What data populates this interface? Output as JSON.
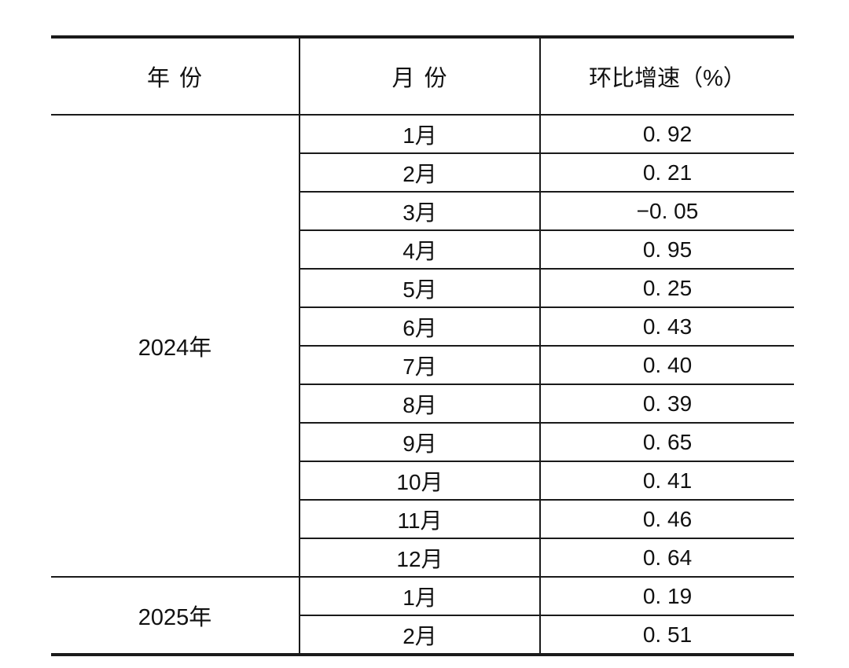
{
  "colors": {
    "ink": "#111111",
    "line": "#1a1a1a",
    "background": "#ffffff"
  },
  "table": {
    "columns": [
      {
        "label": "年份"
      },
      {
        "label": "月份"
      },
      {
        "label": "环比增速（%）"
      }
    ],
    "groups": [
      {
        "year": "2024年",
        "rows": [
          {
            "month": "1月",
            "value_display": "0. 92"
          },
          {
            "month": "2月",
            "value_display": "0. 21"
          },
          {
            "month": "3月",
            "value_display": "−0. 05"
          },
          {
            "month": "4月",
            "value_display": "0. 95"
          },
          {
            "month": "5月",
            "value_display": "0. 25"
          },
          {
            "month": "6月",
            "value_display": "0. 43"
          },
          {
            "month": "7月",
            "value_display": "0. 40"
          },
          {
            "month": "8月",
            "value_display": "0. 39"
          },
          {
            "month": "9月",
            "value_display": "0. 65"
          },
          {
            "month": "10月",
            "value_display": "0. 41"
          },
          {
            "month": "11月",
            "value_display": "0. 46"
          },
          {
            "month": "12月",
            "value_display": "0. 64"
          }
        ]
      },
      {
        "year": "2025年",
        "rows": [
          {
            "month": "1月",
            "value_display": "0. 19"
          },
          {
            "month": "2月",
            "value_display": "0. 51"
          }
        ]
      }
    ]
  },
  "chart_data": {
    "type": "table",
    "columns": [
      "年份",
      "月份",
      "环比增速（%）"
    ],
    "rows": [
      [
        "2024年",
        "1月",
        0.92
      ],
      [
        "2024年",
        "2月",
        0.21
      ],
      [
        "2024年",
        "3月",
        -0.05
      ],
      [
        "2024年",
        "4月",
        0.95
      ],
      [
        "2024年",
        "5月",
        0.25
      ],
      [
        "2024年",
        "6月",
        0.43
      ],
      [
        "2024年",
        "7月",
        0.4
      ],
      [
        "2024年",
        "8月",
        0.39
      ],
      [
        "2024年",
        "9月",
        0.65
      ],
      [
        "2024年",
        "10月",
        0.41
      ],
      [
        "2024年",
        "11月",
        0.46
      ],
      [
        "2024年",
        "12月",
        0.64
      ],
      [
        "2025年",
        "1月",
        0.19
      ],
      [
        "2025年",
        "2月",
        0.51
      ]
    ]
  }
}
